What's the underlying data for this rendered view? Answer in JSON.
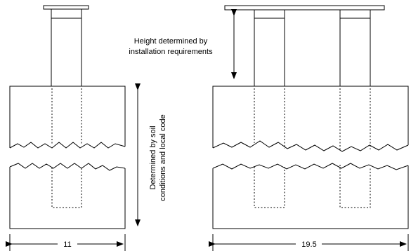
{
  "labels": {
    "height_line1": "Height determined by",
    "height_line2": "installation requirements",
    "soil_line1": "Determined by soil",
    "soil_line2": "conditions and local code",
    "width_left": "11",
    "width_right": "19.5"
  }
}
